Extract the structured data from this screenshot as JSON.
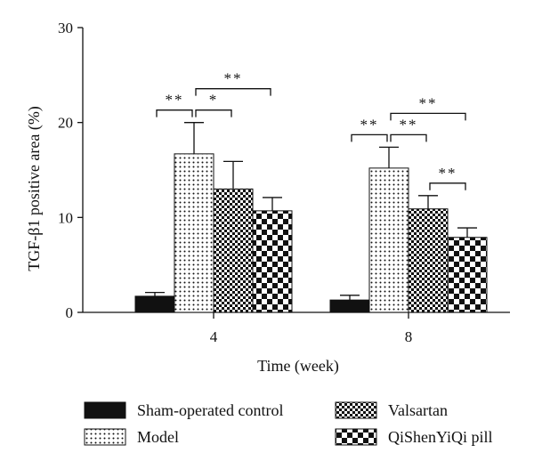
{
  "chart_data": {
    "type": "bar",
    "xlabel": "Time (week)",
    "ylabel": "TGF-β1 positive area (%)",
    "ylim": [
      0,
      30
    ],
    "yticks": [
      0,
      10,
      20,
      30
    ],
    "categories": [
      "4",
      "8"
    ],
    "grid": false,
    "legend_position": "bottom",
    "series": [
      {
        "name": "Sham-operated control",
        "pattern": "solid",
        "values": [
          1.7,
          1.3
        ],
        "errors": [
          0.4,
          0.5
        ]
      },
      {
        "name": "Model",
        "pattern": "dots",
        "values": [
          16.7,
          15.2
        ],
        "errors": [
          3.3,
          2.2
        ]
      },
      {
        "name": "Valsartan",
        "pattern": "fine-check",
        "values": [
          13.0,
          10.9
        ],
        "errors": [
          2.9,
          1.4
        ]
      },
      {
        "name": "QiShenYiQi pill",
        "pattern": "coarse-check",
        "values": [
          10.7,
          7.9
        ],
        "errors": [
          1.4,
          1.0
        ]
      }
    ],
    "significance": [
      {
        "category": "4",
        "from": 0,
        "to": 1,
        "label": "**"
      },
      {
        "category": "4",
        "from": 1,
        "to": 2,
        "label": "*"
      },
      {
        "category": "4",
        "from": 1,
        "to": 3,
        "label": "**"
      },
      {
        "category": "8",
        "from": 0,
        "to": 1,
        "label": "**"
      },
      {
        "category": "8",
        "from": 1,
        "to": 2,
        "label": "**"
      },
      {
        "category": "8",
        "from": 2,
        "to": 3,
        "label": "**"
      },
      {
        "category": "8",
        "from": 1,
        "to": 3,
        "label": "**"
      }
    ]
  }
}
